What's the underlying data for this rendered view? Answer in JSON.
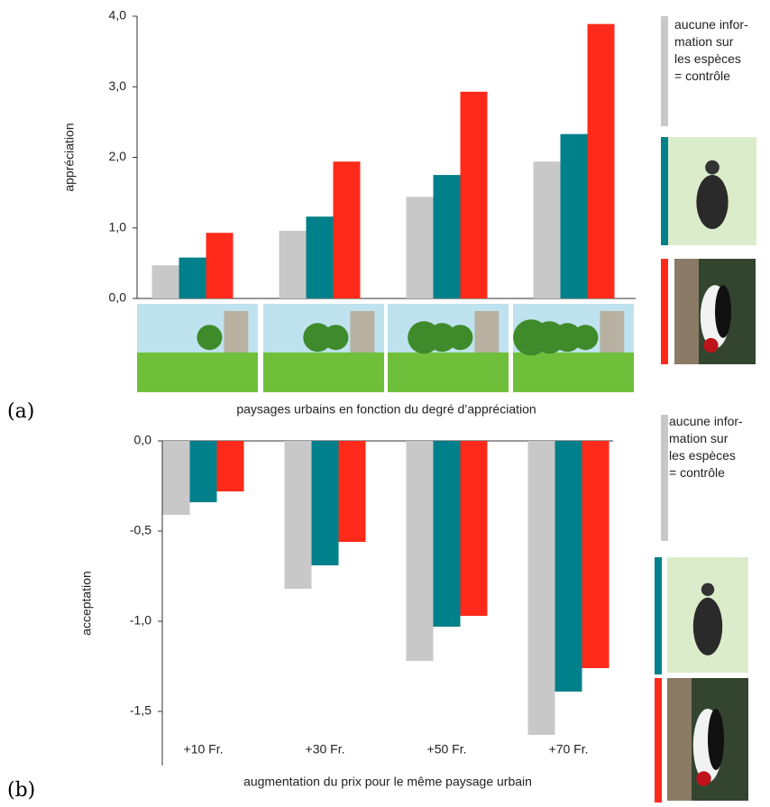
{
  "chart_data": [
    {
      "type": "bar",
      "label": "(a)",
      "ylabel": "appréciation",
      "xlabel": "paysages urbains en fonction du degré d’appréciation",
      "categories": [
        null,
        null,
        null,
        null
      ],
      "series": [
        {
          "name": "aucune infor-\nmation sur\nles espèces\n= contrôle",
          "color": "#c8c8c8",
          "values": [
            0.47,
            0.96,
            1.44,
            1.94
          ]
        },
        {
          "color": "#00808a",
          "values": [
            0.58,
            1.16,
            1.75,
            2.33
          ]
        },
        {
          "color": "#ff2a1a",
          "values": [
            0.93,
            1.94,
            2.93,
            3.89
          ]
        }
      ],
      "ylim": [
        0,
        4
      ],
      "yticks": [
        {
          "value": 0,
          "label": "0,0"
        },
        {
          "value": 1,
          "label": "1,0"
        },
        {
          "value": 2,
          "label": "2,0"
        },
        {
          "value": 3,
          "label": "3,0"
        },
        {
          "value": 4,
          "label": "4,0"
        }
      ]
    },
    {
      "type": "bar",
      "label": "(b)",
      "ylabel": "acceptation",
      "xlabel": "augmentation du prix pour le même paysage urbain",
      "categories": [
        "+10 Fr.",
        "+30 Fr.",
        "+50 Fr.",
        "+70 Fr."
      ],
      "series": [
        {
          "name": "aucune infor-\nmation sur\nles espèces\n= contrôle",
          "color": "#c8c8c8",
          "values": [
            -0.41,
            -0.82,
            -1.22,
            -1.63
          ]
        },
        {
          "color": "#00808a",
          "values": [
            -0.34,
            -0.69,
            -1.03,
            -1.39
          ]
        },
        {
          "color": "#ff2a1a",
          "values": [
            -0.28,
            -0.56,
            -0.97,
            -1.26
          ]
        }
      ],
      "ylim": [
        -1.8,
        0
      ],
      "yticks": [
        {
          "value": -1.5,
          "label": "-1,5"
        },
        {
          "value": -1,
          "label": "-1,0"
        },
        {
          "value": -0.5,
          "label": "-0,5"
        },
        {
          "value": 0,
          "label": "0,0"
        }
      ]
    }
  ]
}
